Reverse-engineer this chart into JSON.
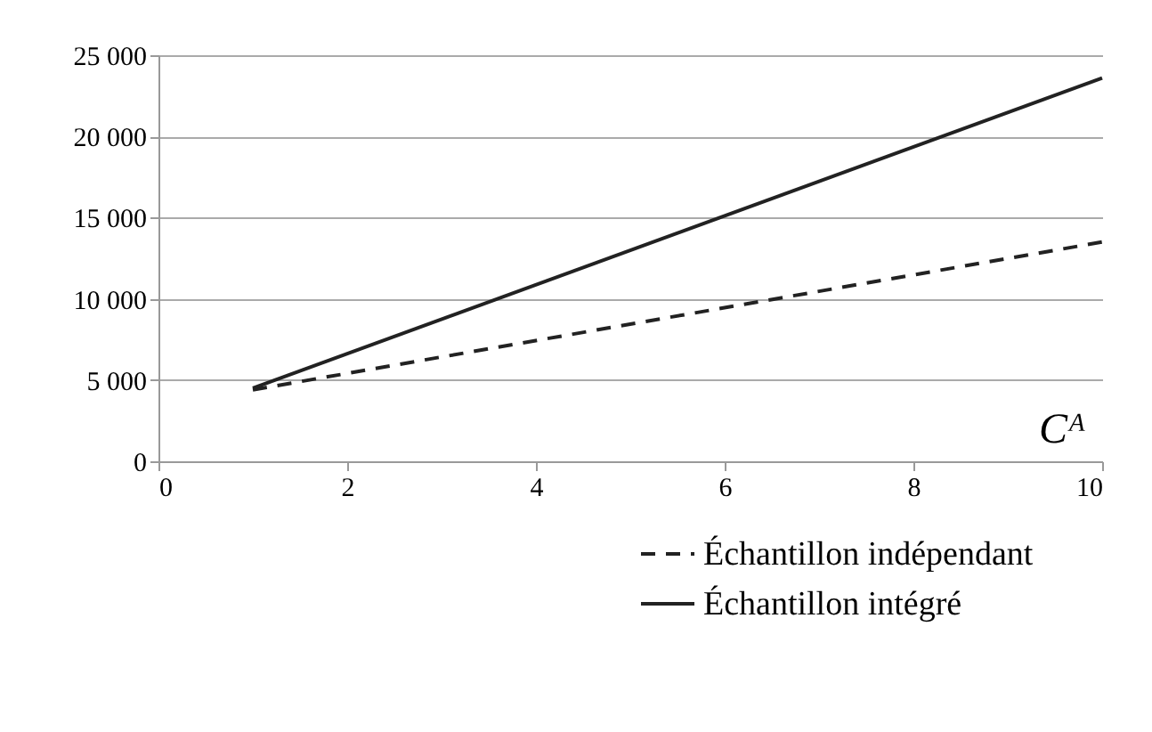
{
  "chart_data": {
    "type": "line",
    "xlabel": "Cᴬ",
    "x": [
      1,
      10
    ],
    "series": [
      {
        "name": "Échantillon indépendant",
        "color": "#222222",
        "line_style": "dashed",
        "values": [
          4400,
          13500
        ]
      },
      {
        "name": "Échantillon intégré",
        "color": "#222222",
        "line_style": "solid",
        "values": [
          4500,
          23600
        ]
      }
    ],
    "xlim": [
      0,
      10
    ],
    "xticks": [
      0,
      2,
      4,
      6,
      8,
      10
    ],
    "ylim": [
      0,
      25000
    ],
    "yticks": [
      0,
      {
        "value": 5000,
        "label": "5 000"
      },
      {
        "value": 10000,
        "label": "10 000"
      },
      {
        "value": 15000,
        "label": "15 000"
      },
      {
        "value": 20000,
        "label": "20 000"
      },
      {
        "value": 25000,
        "label": "25 000"
      }
    ],
    "grid": "y",
    "legend": "bottom right",
    "marker": "none"
  }
}
